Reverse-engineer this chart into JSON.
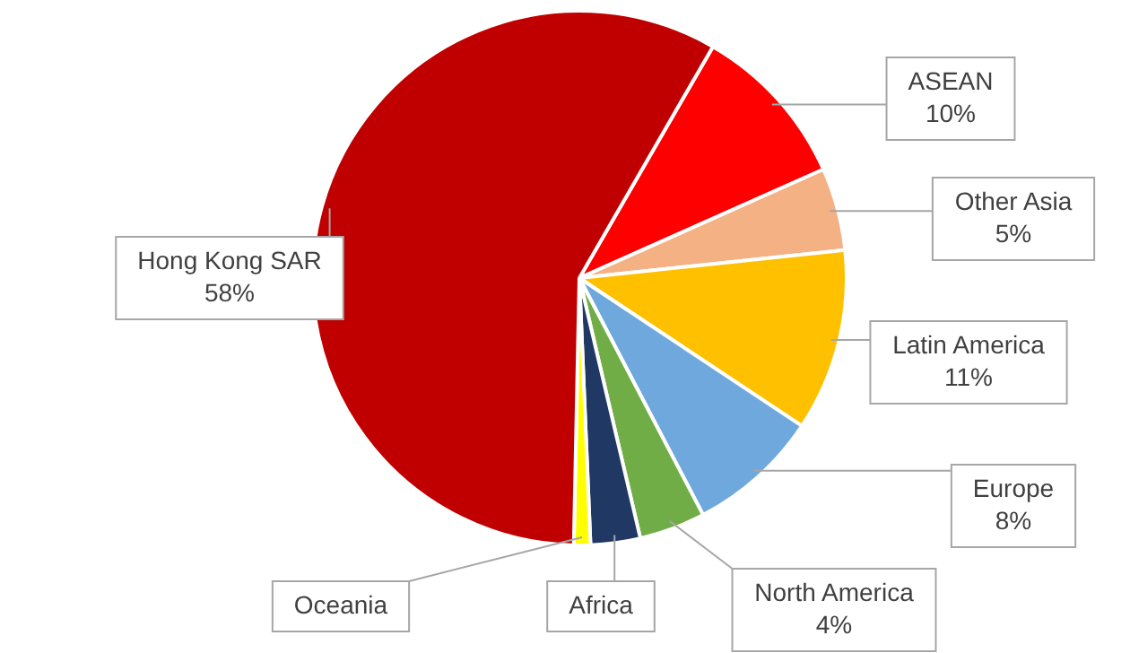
{
  "chart_data": {
    "type": "pie",
    "categories": [
      "ASEAN",
      "Other Asia",
      "Latin America",
      "Europe",
      "North America",
      "Africa",
      "Oceania",
      "Hong Kong SAR"
    ],
    "values": [
      10,
      5,
      11,
      8,
      4,
      3,
      1,
      58
    ],
    "value_labels": [
      "10%",
      "5%",
      "11%",
      "8%",
      "4%",
      null,
      null,
      "58%"
    ],
    "colors": [
      "#ff0000",
      "#f4b183",
      "#ffc000",
      "#6fa8dc",
      "#70ad47",
      "#1f3864",
      "#ffff00",
      "#c00000"
    ],
    "legend": false
  }
}
